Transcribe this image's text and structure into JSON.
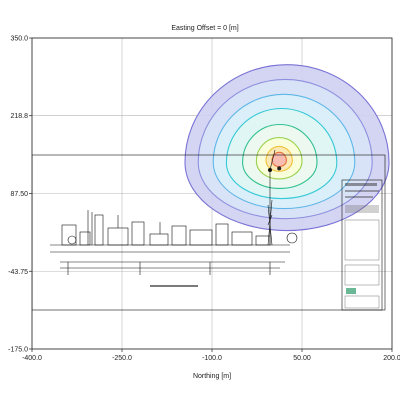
{
  "chart_data": {
    "type": "contour",
    "title": "Easting Offset = 0 [m]",
    "xlabel": "Northing [m]",
    "ylabel": "",
    "xlim": [
      -400,
      200
    ],
    "ylim": [
      -175,
      350
    ],
    "x_ticks": [
      -400,
      -250,
      -100,
      50,
      200
    ],
    "y_ticks": [
      -175,
      -43.75,
      87.5,
      218.8,
      350
    ],
    "x_tick_labels": [
      "-400.0",
      "-250.0",
      "-100.0",
      "50.00",
      "200.0"
    ],
    "y_tick_labels": [
      "-175.0",
      "-43.75",
      "87.50",
      "218.8",
      "350.0"
    ],
    "grid": true,
    "flare_tip": {
      "x": 12,
      "y": 130
    },
    "contours": [
      {
        "color": "#7a72d6",
        "fill": "#cfd0f1",
        "rx": 170,
        "ry_up": 165,
        "ry_down": 115,
        "cx": 25,
        "cy": 140
      },
      {
        "color": "#8f8fe0",
        "fill": "#d8e4f7",
        "rx": 145,
        "ry_up": 140,
        "ry_down": 95,
        "cx": 22,
        "cy": 140
      },
      {
        "color": "#5fb6e8",
        "fill": "#dcf0fa",
        "rx": 118,
        "ry_up": 115,
        "ry_down": 78,
        "cx": 20,
        "cy": 140
      },
      {
        "color": "#34c9d6",
        "fill": "#e0f6f4",
        "rx": 92,
        "ry_up": 92,
        "ry_down": 60,
        "cx": 16,
        "cy": 139
      },
      {
        "color": "#2fbf8f",
        "fill": "#eefaf0",
        "rx": 62,
        "ry_up": 64,
        "ry_down": 44,
        "cx": 13,
        "cy": 140
      },
      {
        "color": "#9ad24f",
        "fill": "#fbffd8",
        "rx": 38,
        "ry_up": 40,
        "ry_down": 30,
        "cx": 12,
        "cy": 142
      },
      {
        "color": "#f0c23a",
        "fill": "#fde7b0",
        "rx": 22,
        "ry_up": 24,
        "ry_down": 18,
        "cx": 12,
        "cy": 143
      },
      {
        "color": "#e8723a",
        "fill": "#f7b7b0",
        "rx": 12,
        "ry_up": 14,
        "ry_down": 10,
        "cx": 12,
        "cy": 143
      }
    ]
  }
}
